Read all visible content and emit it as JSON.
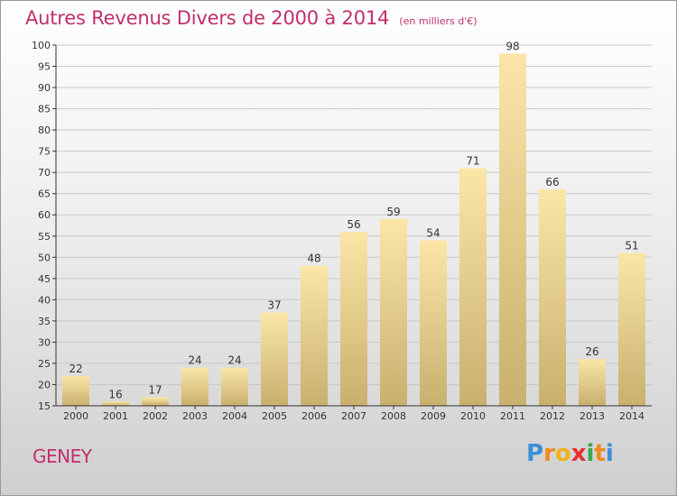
{
  "chart_data": {
    "type": "bar",
    "title": "Autres Revenus Divers de 2000 à 2014",
    "subtitle": "(en milliers d'€)",
    "categories": [
      "2000",
      "2001",
      "2002",
      "2003",
      "2004",
      "2005",
      "2006",
      "2007",
      "2008",
      "2009",
      "2010",
      "2011",
      "2012",
      "2013",
      "2014"
    ],
    "values": [
      22,
      16,
      17,
      24,
      24,
      37,
      48,
      56,
      59,
      54,
      71,
      98,
      66,
      26,
      51
    ],
    "ylim": [
      15,
      100
    ],
    "yticks": [
      15,
      20,
      25,
      30,
      35,
      40,
      45,
      50,
      55,
      60,
      65,
      70,
      75,
      80,
      85,
      90,
      95,
      100
    ],
    "grid": true,
    "bar_color_light": "#fbe6a8",
    "bar_color_dark": "#c8b06e"
  },
  "footer": {
    "place": "GENEY",
    "brand_letters": [
      "P",
      "r",
      "o",
      "x",
      "i",
      "t",
      "i"
    ],
    "brand_colors": [
      "#3b8fd6",
      "#f08a1c",
      "#f0b21c",
      "#e8302c",
      "#3aa84a",
      "#f08a1c",
      "#3b8fd6"
    ]
  },
  "colors": {
    "title": "#c0306a",
    "axis": "#333333",
    "grid": "#c8c8c8"
  }
}
